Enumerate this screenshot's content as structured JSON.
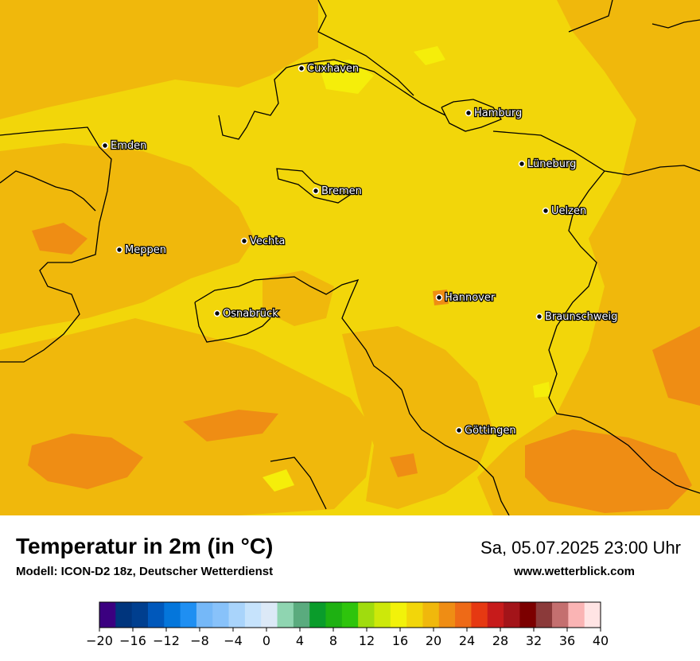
{
  "header": {
    "title": "Temperatur in 2m (in °C)",
    "subtitle": "Modell: ICON-D2 18z, Deutscher Wetterdienst",
    "datetime": "Sa, 05.07.2025 23:00 Uhr",
    "website": "www.wetterblick.com"
  },
  "map": {
    "colors": {
      "base": "#f2d60a",
      "warm": "#f0b80c",
      "hot": "#ef8d14",
      "cool": "#f5ee0a",
      "border": "#000000"
    },
    "cities": [
      {
        "name": "Cuxhaven"
      },
      {
        "name": "Hamburg"
      },
      {
        "name": "Emden"
      },
      {
        "name": "Lüneburg"
      },
      {
        "name": "Bremen"
      },
      {
        "name": "Uelzen"
      },
      {
        "name": "Vechta"
      },
      {
        "name": "Meppen"
      },
      {
        "name": "Hannover"
      },
      {
        "name": "Osnabrück"
      },
      {
        "name": "Braunschweig"
      },
      {
        "name": "Göttingen"
      }
    ]
  },
  "scale": {
    "colors": [
      "#3b0080",
      "#00357d",
      "#003f8f",
      "#0058bb",
      "#0476db",
      "#1f8ff2",
      "#75b8f8",
      "#88c2fa",
      "#a9d4fb",
      "#c6e3fc",
      "#dce9f7",
      "#8fd5b1",
      "#5aab7e",
      "#0a9c2b",
      "#1eb112",
      "#2ec40c",
      "#a0dc0e",
      "#cde80a",
      "#f2f20a",
      "#f2d60a",
      "#f0b80c",
      "#ef8d14",
      "#ee6a17",
      "#e63912",
      "#c71b1b",
      "#a31419",
      "#7c0000",
      "#8b3a3a",
      "#c46f6f",
      "#fab4b4",
      "#ffe4e4"
    ],
    "tick_labels": [
      "−20",
      "−16",
      "−12",
      "−8",
      "−4",
      "0",
      "4",
      "8",
      "12",
      "16",
      "20",
      "24",
      "28",
      "32",
      "36",
      "40"
    ]
  }
}
